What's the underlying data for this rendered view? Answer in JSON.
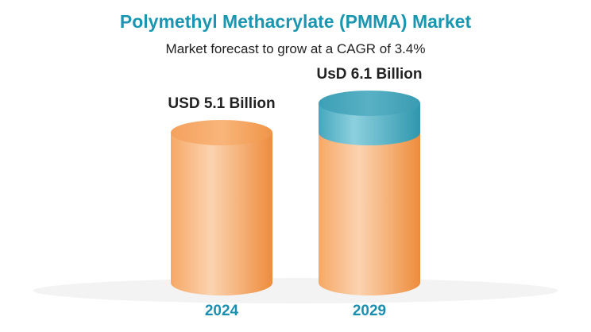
{
  "title": "Polymethyl Methacrylate (PMMA) Market",
  "subtitle": "Market forecast to grow at a CAGR of 3.4%",
  "colors": {
    "title": "#1a96b0",
    "base_light": "#fbd3b0",
    "base_mid": "#f6a866",
    "base_dark": "#ee8c3c",
    "growth_light": "#8cd0de",
    "growth_dark": "#2f97ae",
    "category_label": "#1a8fb0"
  },
  "chart_data": {
    "type": "bar",
    "style": "3d-cylinder",
    "categories": [
      "2024",
      "2029"
    ],
    "values": [
      5.1,
      6.1
    ],
    "unit": "USD Billion",
    "value_labels": [
      "USD 5.1 Billion",
      "UsD 6.1 Billion"
    ],
    "base_value": 5.1,
    "title": "Polymethyl Methacrylate (PMMA) Market",
    "subtitle": "Market forecast to grow at a CAGR of 3.4%",
    "xlabel": "",
    "ylabel": ""
  }
}
